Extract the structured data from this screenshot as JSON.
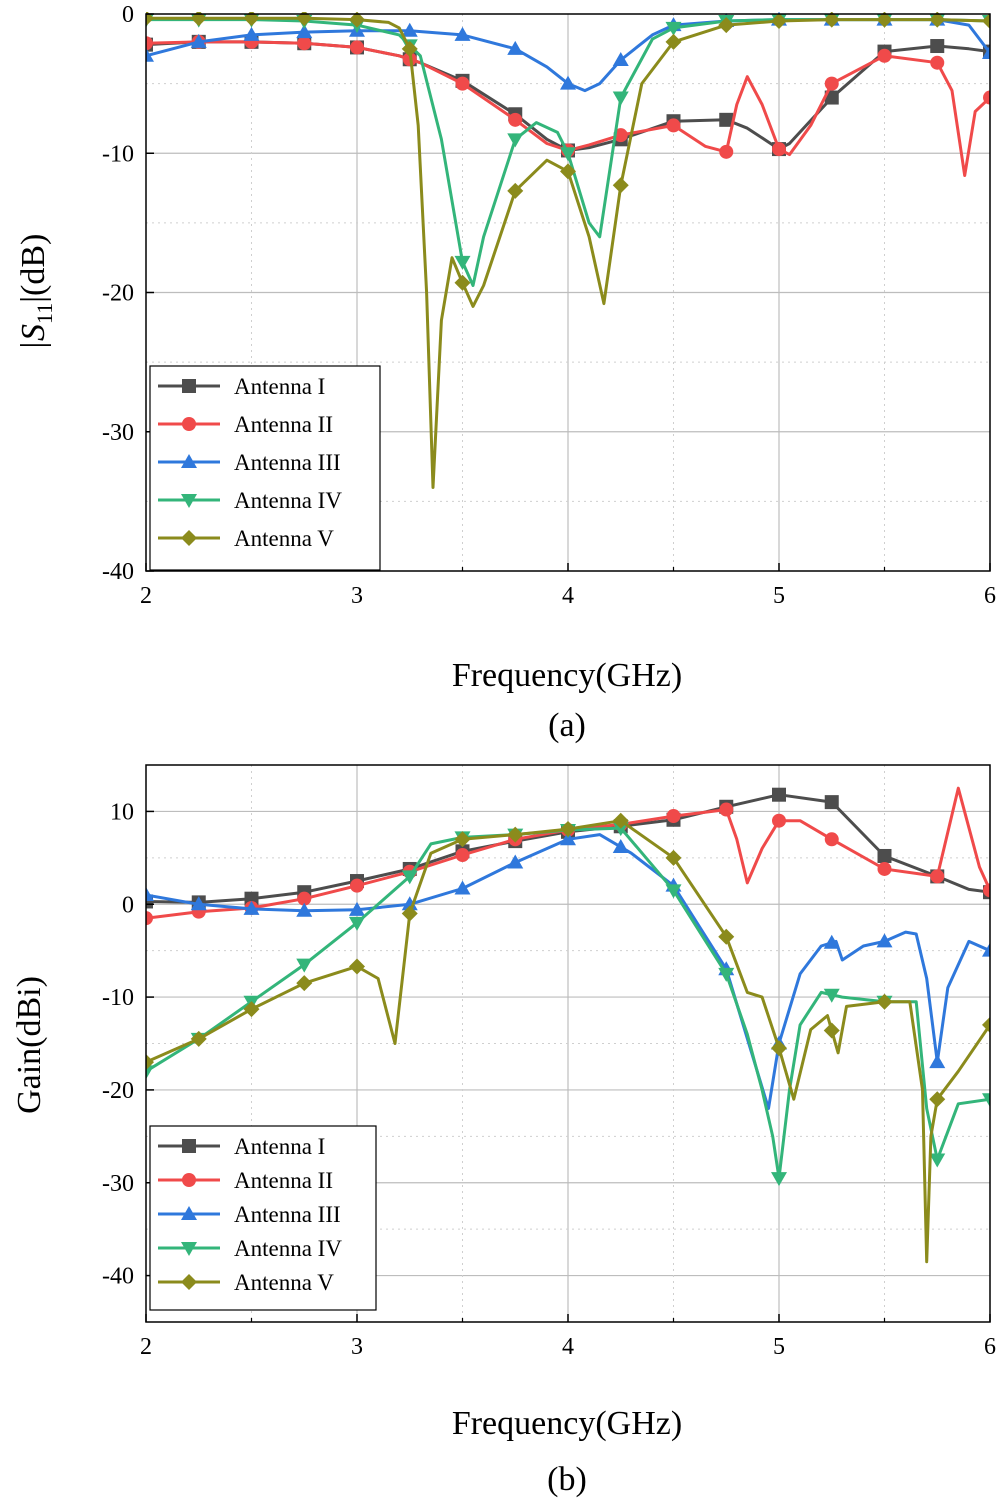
{
  "chart_data": [
    {
      "type": "line",
      "panel_label": "(a)",
      "title": "",
      "xlabel": "Frequency(GHz)",
      "ylabel_main": "|S",
      "ylabel_sub": "11",
      "ylabel_tail": "|(dB)",
      "xlim": [
        2,
        6
      ],
      "ylim": [
        -40,
        0
      ],
      "xticks": [
        2,
        3,
        4,
        5,
        6
      ],
      "yticks": [
        0,
        -10,
        -20,
        -30,
        -40
      ],
      "xtick_labels": [
        "2",
        "3",
        "4",
        "5",
        "6"
      ],
      "ytick_labels": [
        "0",
        "-10",
        "-20",
        "-30",
        "-40"
      ],
      "grid": true,
      "legend_position": "bottom-left",
      "series": [
        {
          "name": "Antenna I",
          "color": "#4d4d4d",
          "marker": "square",
          "x": [
            2.0,
            2.25,
            2.5,
            2.75,
            3.0,
            3.2,
            3.3,
            3.5,
            3.75,
            3.9,
            4.0,
            4.1,
            4.25,
            4.5,
            4.75,
            4.85,
            4.95,
            5.0,
            5.05,
            5.25,
            5.5,
            5.75,
            5.9,
            6.0
          ],
          "y": [
            -2.2,
            -2.0,
            -2.0,
            -2.1,
            -2.4,
            -3.0,
            -3.5,
            -4.8,
            -7.2,
            -9.0,
            -9.8,
            -9.6,
            -9.0,
            -7.7,
            -7.6,
            -8.2,
            -9.2,
            -9.7,
            -9.3,
            -6.0,
            -2.7,
            -2.3,
            -2.5,
            -2.7
          ]
        },
        {
          "name": "Antenna II",
          "color": "#f04a4a",
          "marker": "circle",
          "x": [
            2.0,
            2.25,
            2.5,
            2.75,
            3.0,
            3.2,
            3.3,
            3.5,
            3.75,
            3.9,
            4.0,
            4.1,
            4.25,
            4.5,
            4.65,
            4.75,
            4.8,
            4.85,
            4.92,
            5.0,
            5.05,
            5.15,
            5.25,
            5.5,
            5.75,
            5.82,
            5.88,
            5.93,
            6.0
          ],
          "y": [
            -2.1,
            -2.0,
            -2.0,
            -2.1,
            -2.4,
            -3.0,
            -3.5,
            -5.0,
            -7.6,
            -9.3,
            -9.8,
            -9.4,
            -8.7,
            -8.0,
            -9.5,
            -9.9,
            -6.5,
            -4.5,
            -6.5,
            -9.7,
            -10.1,
            -8.0,
            -5.0,
            -3.0,
            -3.5,
            -5.5,
            -11.6,
            -7.0,
            -6.0
          ]
        },
        {
          "name": "Antenna III",
          "color": "#2f78dc",
          "marker": "triangle-up",
          "x": [
            2.0,
            2.25,
            2.5,
            2.75,
            3.0,
            3.25,
            3.5,
            3.75,
            3.9,
            4.0,
            4.08,
            4.15,
            4.25,
            4.4,
            4.5,
            4.75,
            5.0,
            5.25,
            5.5,
            5.75,
            5.9,
            6.0
          ],
          "y": [
            -3.0,
            -2.0,
            -1.5,
            -1.3,
            -1.2,
            -1.2,
            -1.5,
            -2.5,
            -3.8,
            -5.0,
            -5.5,
            -5.0,
            -3.3,
            -1.5,
            -0.8,
            -0.5,
            -0.4,
            -0.4,
            -0.4,
            -0.4,
            -0.8,
            -2.8
          ]
        },
        {
          "name": "Antenna IV",
          "color": "#33b57a",
          "marker": "triangle-down",
          "x": [
            2.0,
            2.25,
            2.5,
            2.75,
            3.0,
            3.2,
            3.3,
            3.4,
            3.5,
            3.55,
            3.6,
            3.75,
            3.85,
            3.95,
            4.0,
            4.1,
            4.15,
            4.25,
            4.4,
            4.5,
            4.75,
            5.0,
            5.25,
            5.5,
            5.75,
            6.0
          ],
          "y": [
            -0.4,
            -0.4,
            -0.4,
            -0.5,
            -0.8,
            -1.5,
            -3.0,
            -9.0,
            -17.8,
            -19.5,
            -16.0,
            -9.0,
            -7.8,
            -8.5,
            -10.0,
            -15.0,
            -16.0,
            -6.0,
            -1.8,
            -1.0,
            -0.5,
            -0.4,
            -0.4,
            -0.4,
            -0.4,
            -0.5
          ]
        },
        {
          "name": "Antenna V",
          "color": "#8b8b1c",
          "marker": "diamond",
          "x": [
            2.0,
            2.25,
            2.5,
            2.75,
            3.0,
            3.15,
            3.2,
            3.25,
            3.29,
            3.33,
            3.36,
            3.4,
            3.45,
            3.5,
            3.55,
            3.6,
            3.75,
            3.9,
            4.0,
            4.1,
            4.17,
            4.25,
            4.35,
            4.5,
            4.75,
            5.0,
            5.25,
            5.5,
            5.75,
            6.0
          ],
          "y": [
            -0.3,
            -0.3,
            -0.3,
            -0.3,
            -0.4,
            -0.6,
            -1.0,
            -2.5,
            -8.0,
            -20.0,
            -34.0,
            -22.0,
            -17.5,
            -19.3,
            -21.0,
            -19.5,
            -12.7,
            -10.5,
            -11.3,
            -16.0,
            -20.8,
            -12.3,
            -5.0,
            -2.0,
            -0.8,
            -0.5,
            -0.4,
            -0.4,
            -0.4,
            -0.5
          ]
        }
      ]
    },
    {
      "type": "line",
      "panel_label": "(b)",
      "title": "",
      "xlabel": "Frequency(GHz)",
      "ylabel": "Gain(dBi)",
      "xlim": [
        2,
        6
      ],
      "ylim": [
        -45,
        15
      ],
      "xticks": [
        2,
        3,
        4,
        5,
        6
      ],
      "yticks": [
        10,
        0,
        -10,
        -20,
        -30,
        -40
      ],
      "xtick_labels": [
        "2",
        "3",
        "4",
        "5",
        "6"
      ],
      "ytick_labels": [
        "10",
        "0",
        "-10",
        "-20",
        "-30",
        "-40"
      ],
      "grid": true,
      "legend_position": "bottom-left",
      "series": [
        {
          "name": "Antenna I",
          "color": "#4d4d4d",
          "marker": "square",
          "x": [
            2.0,
            2.25,
            2.5,
            2.75,
            3.0,
            3.25,
            3.5,
            3.75,
            4.0,
            4.25,
            4.5,
            4.75,
            5.0,
            5.25,
            5.5,
            5.75,
            5.9,
            6.0
          ],
          "y": [
            0.3,
            0.2,
            0.6,
            1.3,
            2.5,
            3.8,
            5.7,
            6.8,
            7.8,
            8.4,
            9.1,
            10.5,
            11.8,
            11.0,
            5.2,
            3.0,
            1.6,
            1.3
          ]
        },
        {
          "name": "Antenna II",
          "color": "#f04a4a",
          "marker": "circle",
          "x": [
            2.0,
            2.25,
            2.5,
            2.75,
            3.0,
            3.25,
            3.5,
            3.75,
            4.0,
            4.25,
            4.5,
            4.75,
            4.8,
            4.85,
            4.92,
            5.0,
            5.1,
            5.25,
            5.5,
            5.75,
            5.85,
            5.95,
            6.0
          ],
          "y": [
            -1.5,
            -0.8,
            -0.4,
            0.6,
            2.0,
            3.5,
            5.3,
            7.0,
            8.0,
            8.6,
            9.5,
            10.2,
            7.0,
            2.3,
            6.0,
            9.0,
            9.0,
            7.0,
            3.8,
            3.0,
            12.5,
            4.0,
            1.5
          ]
        },
        {
          "name": "Antenna III",
          "color": "#2f78dc",
          "marker": "triangle-up",
          "x": [
            2.0,
            2.25,
            2.5,
            2.75,
            3.0,
            3.25,
            3.5,
            3.75,
            4.0,
            4.15,
            4.3,
            4.5,
            4.75,
            4.95,
            5.0,
            5.1,
            5.2,
            5.27,
            5.3,
            5.4,
            5.5,
            5.6,
            5.65,
            5.7,
            5.75,
            5.8,
            5.9,
            6.0
          ],
          "y": [
            1.0,
            0.0,
            -0.5,
            -0.7,
            -0.6,
            0.0,
            1.7,
            4.5,
            7.0,
            7.5,
            5.5,
            2.0,
            -7.0,
            -22.0,
            -15.0,
            -7.5,
            -4.5,
            -4.0,
            -6.0,
            -4.5,
            -4.0,
            -3.0,
            -3.2,
            -8.0,
            -17.0,
            -9.0,
            -4.0,
            -5.0
          ]
        },
        {
          "name": "Antenna IV",
          "color": "#33b57a",
          "marker": "triangle-down",
          "x": [
            2.0,
            2.25,
            2.5,
            2.75,
            3.0,
            3.25,
            3.35,
            3.5,
            3.75,
            4.0,
            4.25,
            4.5,
            4.75,
            4.85,
            4.92,
            4.97,
            5.0,
            5.05,
            5.1,
            5.2,
            5.3,
            5.5,
            5.65,
            5.7,
            5.75,
            5.85,
            6.0
          ],
          "y": [
            -18.0,
            -14.5,
            -10.5,
            -6.5,
            -2.0,
            3.0,
            6.5,
            7.2,
            7.5,
            8.0,
            8.2,
            1.5,
            -7.5,
            -14.0,
            -20.0,
            -25.0,
            -29.5,
            -20.0,
            -13.0,
            -9.5,
            -10.0,
            -10.5,
            -10.5,
            -22.0,
            -27.5,
            -21.5,
            -21.0
          ]
        },
        {
          "name": "Antenna V",
          "color": "#8b8b1c",
          "marker": "diamond",
          "x": [
            2.0,
            2.25,
            2.5,
            2.75,
            3.0,
            3.1,
            3.18,
            3.25,
            3.35,
            3.5,
            3.75,
            4.0,
            4.25,
            4.5,
            4.75,
            4.85,
            4.92,
            5.0,
            5.07,
            5.15,
            5.23,
            5.28,
            5.32,
            5.5,
            5.62,
            5.68,
            5.7,
            5.72,
            5.75,
            5.85,
            6.0
          ],
          "y": [
            -17.0,
            -14.5,
            -11.3,
            -8.5,
            -6.7,
            -8.0,
            -15.0,
            -1.0,
            5.5,
            7.0,
            7.5,
            8.1,
            9.0,
            5.0,
            -3.5,
            -9.5,
            -10.0,
            -15.5,
            -21.0,
            -13.5,
            -12.0,
            -16.0,
            -11.0,
            -10.5,
            -10.5,
            -20.0,
            -38.5,
            -25.0,
            -21.0,
            -18.0,
            -13.0
          ]
        }
      ]
    }
  ]
}
